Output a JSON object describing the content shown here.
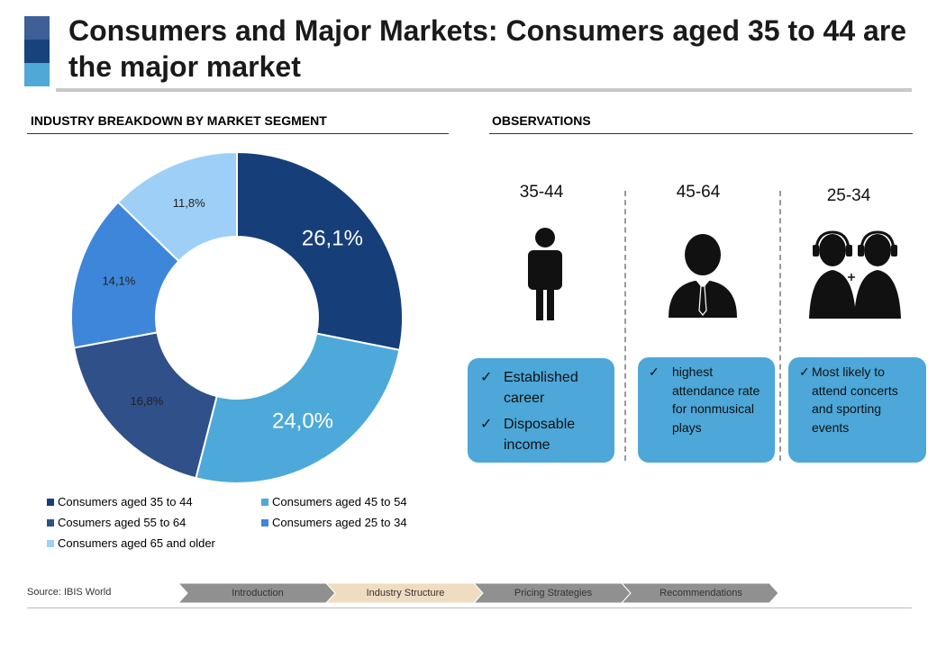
{
  "title": "Consumers and Major Markets: Consumers aged 35 to 44 are the major market",
  "title_colors": [
    "#3f5f97",
    "#17437d",
    "#4fa8d6"
  ],
  "left_heading": "INDUSTRY BREAKDOWN BY MARKET SEGMENT",
  "right_heading": "OBSERVATIONS",
  "chart_data": {
    "type": "pie",
    "subtype": "donut",
    "slices": [
      {
        "label": "Consumers aged 35 to 44",
        "value": 26.1,
        "display": "26,1%",
        "color": "#163e79"
      },
      {
        "label": "Consumers aged 45 to 54",
        "value": 24.0,
        "display": "24,0%",
        "color": "#4da9da"
      },
      {
        "label": "Cosumers aged 55 to 64",
        "value": 16.8,
        "display": "16,8%",
        "color": "#2f5089"
      },
      {
        "label": "Consumers aged 25 to 34",
        "value": 14.1,
        "display": "14,1%",
        "color": "#3d86d9"
      },
      {
        "label": "Consumers aged 65 and older",
        "value": 11.8,
        "display": "11,8%",
        "color": "#9ed0f7"
      }
    ],
    "legend_position": "bottom"
  },
  "observations": [
    {
      "age": "35-44",
      "icon": "person-standing-icon",
      "bullets": [
        "Established career",
        "Disposable income"
      ]
    },
    {
      "age": "45-64",
      "icon": "businessman-icon",
      "bullets": [
        "highest attendance rate for nonmusical plays"
      ]
    },
    {
      "age": "25-34",
      "icon": "headset-people-icon",
      "bullets": [
        "Most likely to attend concerts and sporting events"
      ]
    }
  ],
  "check_glyph": "✓",
  "source": "Source: IBIS World",
  "nav": [
    {
      "label": "Introduction",
      "color": "#909090"
    },
    {
      "label": "Industry Structure",
      "color": "#f0dcc0"
    },
    {
      "label": "Pricing Strategies",
      "color": "#909090"
    },
    {
      "label": "Recommendations",
      "color": "#909090"
    }
  ]
}
